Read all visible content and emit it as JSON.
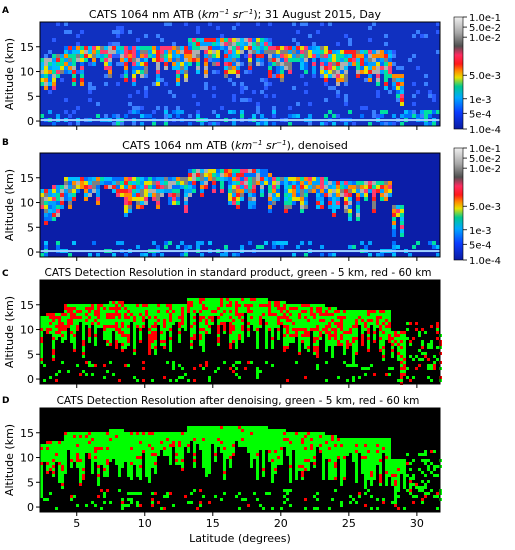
{
  "figure": {
    "xlabel": "Latitude (degrees)",
    "ylabel": "Altitude (km)",
    "xticks": [
      "5",
      "10",
      "15",
      "20",
      "25",
      "30"
    ],
    "yticks": [
      "0",
      "5",
      "10",
      "15"
    ],
    "colorbar_ticks": [
      "1.0e-1",
      "5.0e-2",
      "1.0e-2",
      "5.0e-3",
      "1e-3",
      "5e-4",
      "1.0e-4"
    ],
    "legend_colors": {
      "five_km": "#00ff00",
      "sixty_km": "#ff0000",
      "background": "#000000"
    },
    "panels": [
      {
        "letter": "A",
        "title_pre": "CATS 1064 nm ATB (",
        "unit1": "km",
        "exp1": "−1",
        "unit2": " sr",
        "exp2": "−1",
        "title_post": "); 31 August 2015, Day"
      },
      {
        "letter": "B",
        "title_pre": "CATS 1064 nm ATB (",
        "unit1": "km",
        "exp1": "−1",
        "unit2": " sr",
        "exp2": "−1",
        "title_post": "), denoised"
      },
      {
        "letter": "C",
        "title": "CATS Detection Resolution in standard product, green - 5 km, red - 60 km"
      },
      {
        "letter": "D",
        "title": "CATS Detection Resolution after denoising, green - 5 km, red - 60 km"
      }
    ]
  },
  "chart_data": [
    {
      "type": "heatmap",
      "title": "CATS 1064 nm ATB (km−1 sr−1); 31 August 2015, Day",
      "xlabel": "",
      "ylabel": "Altitude (km)",
      "xlim": [
        2.3,
        31.7
      ],
      "ylim": [
        -1,
        20
      ],
      "colorbar": [
        "1.0e-1",
        "5.0e-2",
        "1.0e-2",
        "5.0e-3",
        "1e-3",
        "5e-4",
        "1.0e-4"
      ]
    },
    {
      "type": "heatmap",
      "title": "CATS 1064 nm ATB (km−1 sr−1), denoised",
      "xlabel": "",
      "ylabel": "Altitude (km)",
      "xlim": [
        2.3,
        31.7
      ],
      "ylim": [
        -1,
        20
      ],
      "colorbar": [
        "1.0e-1",
        "5.0e-2",
        "1.0e-2",
        "5.0e-3",
        "1e-3",
        "5e-4",
        "1.0e-4"
      ]
    },
    {
      "type": "heatmap",
      "title": "CATS Detection Resolution in standard product, green - 5 km, red - 60 km",
      "xlabel": "",
      "ylabel": "Altitude (km)",
      "xlim": [
        2.3,
        31.7
      ],
      "ylim": [
        -1,
        20
      ]
    },
    {
      "type": "heatmap",
      "title": "CATS Detection Resolution after denoising, green - 5 km, red - 60 km",
      "xlabel": "Latitude (degrees)",
      "ylabel": "Altitude (km)",
      "xlim": [
        2.3,
        31.7
      ],
      "ylim": [
        -1,
        20
      ]
    }
  ]
}
